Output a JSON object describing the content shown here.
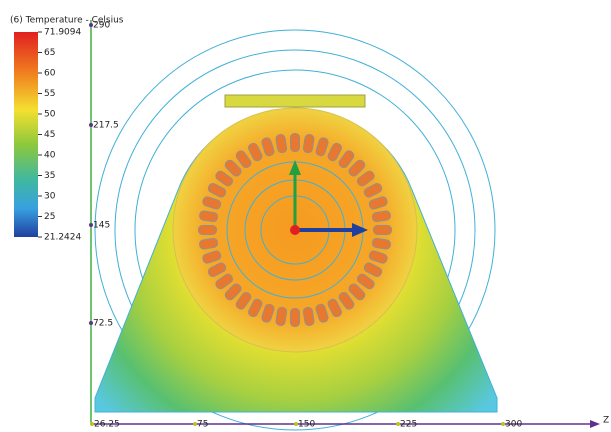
{
  "legend": {
    "title": "(6) Temperature - Celsius",
    "labels": [
      "71.9094",
      "65",
      "60",
      "55",
      "50",
      "45",
      "40",
      "35",
      "30",
      "25",
      "21.2424"
    ]
  },
  "ruler": {
    "vertical": [
      "290",
      "217.5",
      "145",
      "72.5"
    ],
    "horizontal": [
      "26.25",
      "75",
      "150",
      "225",
      "300"
    ],
    "axis_label": "Z"
  }
}
